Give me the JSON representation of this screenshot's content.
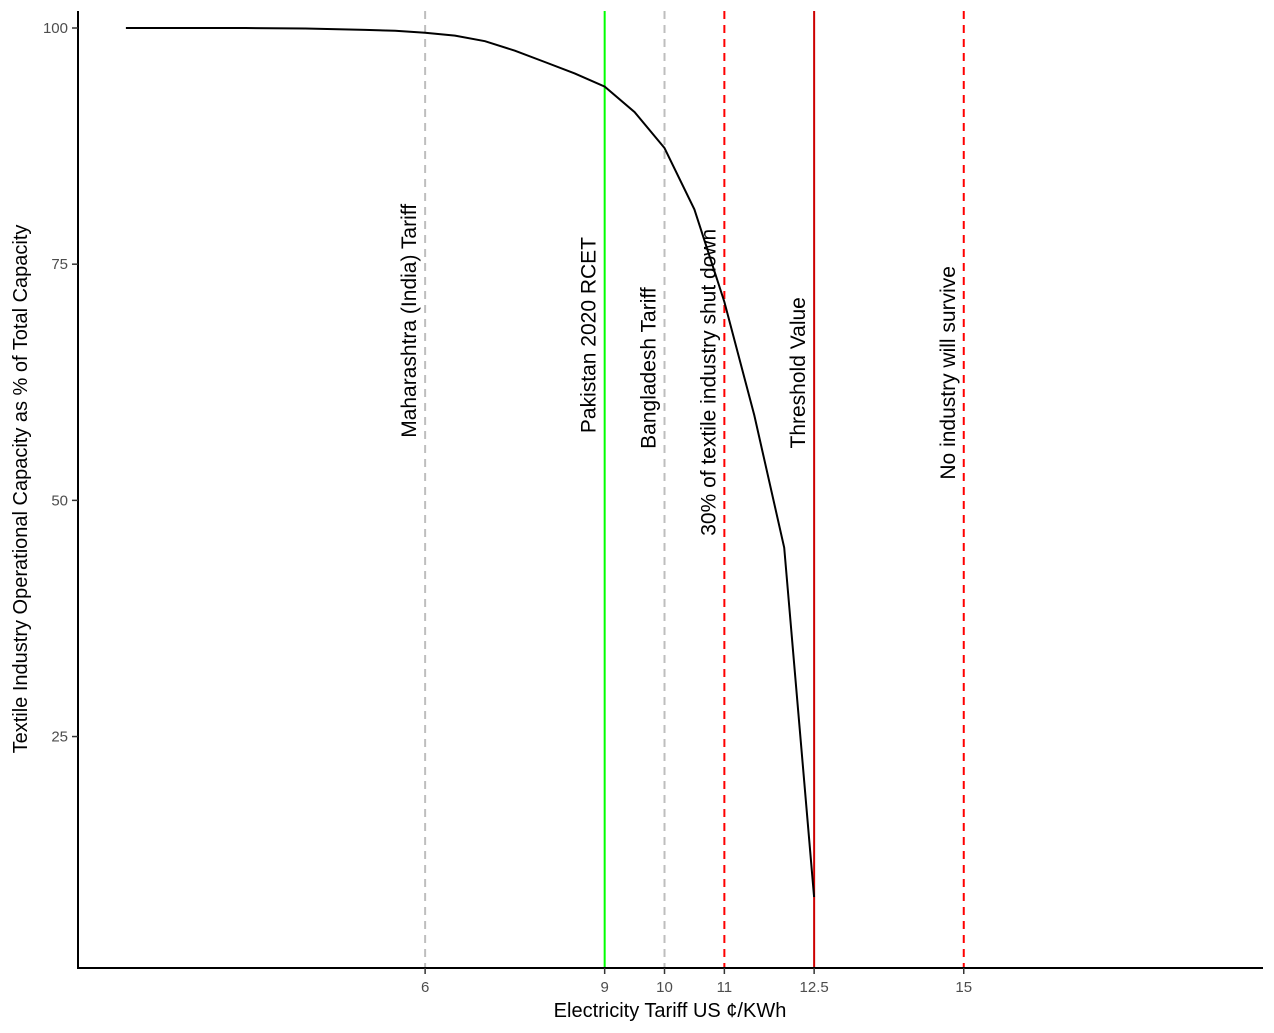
{
  "chart_data": {
    "type": "line",
    "title": "",
    "xlabel": "Electricity Tariff US ¢/KWh",
    "ylabel": "Textile Industry Operational Capacity as % of Total Capacity",
    "xlim": [
      0.2,
      20
    ],
    "ylim": [
      0.5,
      101.8
    ],
    "grid": false,
    "legend": "none",
    "x_ticks": [
      6,
      9,
      10,
      11,
      12.5,
      15
    ],
    "x_tick_labels": [
      "6",
      "9",
      "10",
      "11",
      "12.5",
      "15"
    ],
    "y_ticks": [
      25,
      50,
      75,
      100
    ],
    "y_tick_labels": [
      "25",
      "50",
      "75",
      "100"
    ],
    "curve": {
      "color": "#000000",
      "x": [
        1,
        2,
        3,
        4,
        5,
        5.5,
        6,
        6.5,
        7,
        7.5,
        8,
        8.5,
        9,
        9.5,
        10,
        10.5,
        11,
        11.5,
        12,
        12.5
      ],
      "y": [
        100,
        100,
        100,
        99.95,
        99.8,
        99.7,
        99.5,
        99.2,
        98.6,
        97.6,
        96.4,
        95.2,
        93.8,
        91.1,
        87.3,
        80.8,
        71,
        59,
        45,
        8
      ]
    },
    "reference_lines": [
      {
        "x": 6,
        "label": "Maharashtra (India) Tariff",
        "color": "#bebebe",
        "style": "dashed",
        "label_y": 69
      },
      {
        "x": 9,
        "label": "Pakistan 2020 RCET",
        "color": "#00ff00",
        "style": "solid",
        "label_y": 67.5
      },
      {
        "x": 10,
        "label": "Bangladesh Tariff",
        "color": "#bebebe",
        "style": "dashed",
        "label_y": 64
      },
      {
        "x": 11,
        "label": "30% of textile industry shut down",
        "color": "#ff0000",
        "style": "dashed",
        "label_y": 62.5
      },
      {
        "x": 12.5,
        "label": "Threshold Value",
        "color": "#cc0000",
        "style": "solid",
        "label_y": 63.5
      },
      {
        "x": 15,
        "label": "No industry will survive",
        "color": "#ff0000",
        "style": "dashed",
        "label_y": 63.5
      }
    ]
  }
}
